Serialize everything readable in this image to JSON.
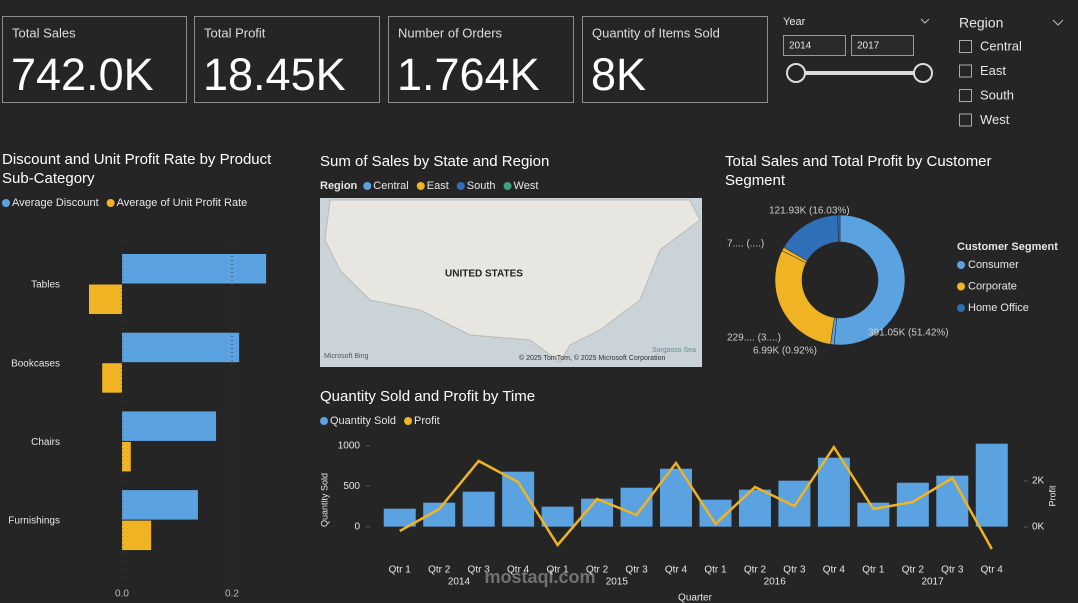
{
  "cards": [
    {
      "title": "Total Sales",
      "value": "742.0K"
    },
    {
      "title": "Total Profit",
      "value": "18.45K"
    },
    {
      "title": "Number of Orders",
      "value": "1.764K"
    },
    {
      "title": "Quantity of Items Sold",
      "value": "8K"
    }
  ],
  "year_slicer": {
    "title": "Year",
    "from": "2014",
    "to": "2017"
  },
  "region_slicer": {
    "title": "Region",
    "items": [
      "Central",
      "East",
      "South",
      "West"
    ]
  },
  "chart_data": [
    {
      "type": "hbar",
      "title": "Discount and Unit Profit Rate by Product Sub-Category",
      "categories": [
        "Tables",
        "Bookcases",
        "Chairs",
        "Furnishings"
      ],
      "series": [
        {
          "name": "Average Discount",
          "color": "#5ba3e0",
          "values": [
            0.262,
            0.213,
            0.171,
            0.138
          ]
        },
        {
          "name": "Average of Unit Profit Rate",
          "color": "#f0b323",
          "values": [
            -0.06,
            -0.036,
            0.016,
            0.053
          ]
        }
      ],
      "xlim": [
        -0.22,
        0.32
      ],
      "xticks": [
        {
          "value": 0,
          "label": "0.0"
        },
        {
          "value": 0.2,
          "label": "0.2"
        }
      ]
    },
    {
      "type": "map",
      "title": "Sum of Sales by State and Region",
      "legend_title": "Region",
      "series": [
        {
          "name": "Central",
          "color": "#5ba3e0"
        },
        {
          "name": "East",
          "color": "#f0b323"
        },
        {
          "name": "South",
          "color": "#2f6fb8"
        },
        {
          "name": "West",
          "color": "#3fa37f"
        }
      ],
      "labels": [
        "UNITED STATES",
        "Sargasso Sea",
        "© 2025 TomTom, © 2025 Microsoft Corporation",
        "Microsoft Bing"
      ]
    },
    {
      "type": "donut",
      "title": "Total Sales and Total Profit by Customer Segment",
      "legend_title": "Customer Segment",
      "legend": [
        {
          "name": "Consumer",
          "color": "#5ba3e0"
        },
        {
          "name": "Corporate",
          "color": "#f0b323"
        },
        {
          "name": "Home Office",
          "color": "#2f6fb8"
        }
      ],
      "values": [
        391050,
        6990,
        229020,
        7060,
        121930,
        4400
      ],
      "value_labels": [
        "391.05K (51.42%)",
        "6.99K (0.92%)",
        "229.... (3....)",
        "7.... (....)",
        "121.93K (16.03%)",
        null
      ],
      "colors": [
        "#5ba3e0",
        "#5ba3e0",
        "#f0b323",
        "#f0b323",
        "#2f6fb8",
        "#2f6fb8"
      ]
    },
    {
      "type": "combo",
      "title": "Quantity Sold and Profit by Time",
      "categories": [
        "Qtr 1",
        "Qtr 2",
        "Qtr 3",
        "Qtr 4",
        "Qtr 1",
        "Qtr 2",
        "Qtr 3",
        "Qtr 4",
        "Qtr 1",
        "Qtr 2",
        "Qtr 3",
        "Qtr 4",
        "Qtr 1",
        "Qtr 2",
        "Qtr 3",
        "Qtr 4"
      ],
      "groups": [
        "2014",
        "2015",
        "2016",
        "2017"
      ],
      "x_title": "Quarter",
      "y_title": "Quantity Sold",
      "y2_title": "Profit",
      "series": [
        {
          "name": "Quantity Sold",
          "color": "#5ba3e0",
          "type": "bar",
          "values": [
            222,
            296,
            432,
            679,
            247,
            346,
            481,
            716,
            333,
            457,
            568,
            852,
            296,
            543,
            630,
            1025
          ]
        },
        {
          "name": "Profit",
          "color": "#f0b323",
          "type": "line",
          "axis": "y2",
          "values": [
            -174,
            783,
            2870,
            1957,
            -783,
            1217,
            522,
            2783,
            130,
            1739,
            913,
            3478,
            783,
            1087,
            2130,
            -957
          ]
        }
      ],
      "ylim": [
        -350,
        1120
      ],
      "yticks": [
        0,
        500,
        1000
      ],
      "y2lim": [
        -1220,
        3960
      ],
      "y2ticks": [
        {
          "value": 0,
          "label": "0K"
        },
        {
          "value": 2000,
          "label": "2K"
        }
      ]
    }
  ],
  "watermark": "mostaql.com"
}
